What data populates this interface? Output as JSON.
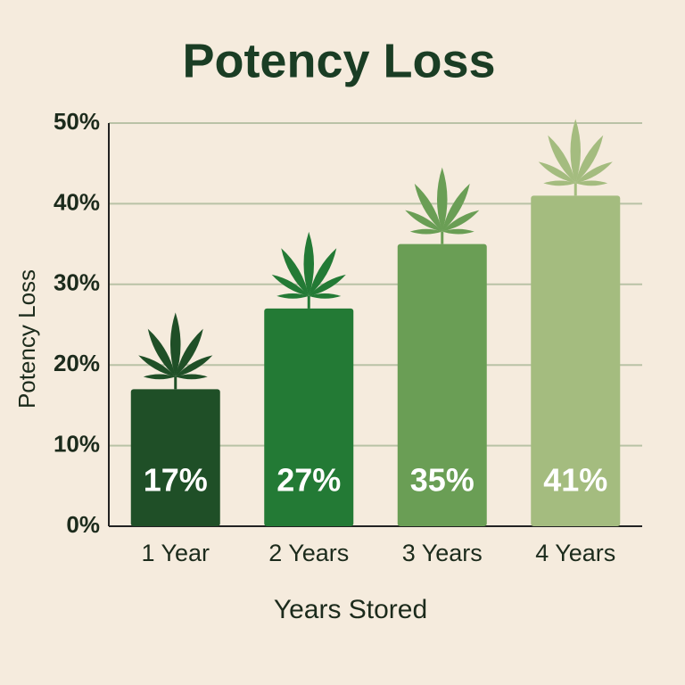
{
  "chart_data": {
    "type": "bar",
    "title": "Potency Loss",
    "x_label": "Years Stored",
    "y_label": "Potency Loss",
    "categories": [
      "1 Year",
      "2 Years",
      "3 Years",
      "4 Years"
    ],
    "values": [
      17,
      27,
      35,
      41
    ],
    "value_labels": [
      "17%",
      "27%",
      "35%",
      "41%"
    ],
    "colors": [
      "#1f4f27",
      "#237a35",
      "#6a9e55",
      "#a4bc7f"
    ],
    "ylim": [
      0,
      50
    ],
    "yticks": [
      {
        "value": 0,
        "label": "0%"
      },
      {
        "value": 10,
        "label": "10%"
      },
      {
        "value": 20,
        "label": "20%"
      },
      {
        "value": 30,
        "label": "30%"
      },
      {
        "value": 40,
        "label": "40%"
      },
      {
        "value": 50,
        "label": "50%"
      }
    ],
    "grid": true
  }
}
